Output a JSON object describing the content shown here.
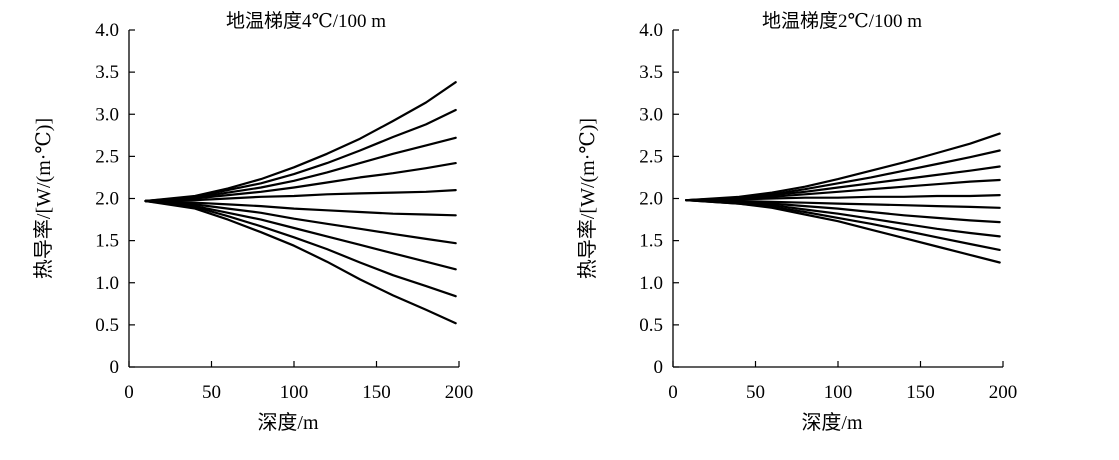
{
  "chart_data": [
    {
      "type": "line",
      "title": "地温梯度4℃/100 m",
      "xlabel": "深度/m",
      "ylabel": "热导率/[W/(m·℃)]",
      "xlim": [
        0,
        200
      ],
      "ylim": [
        0,
        4.0
      ],
      "xticks": [
        "0",
        "50",
        "100",
        "150",
        "200"
      ],
      "yticks": [
        "0",
        "0.5",
        "1.0",
        "1.5",
        "2.0",
        "2.5",
        "3.0",
        "3.5",
        "4.0"
      ],
      "grid": false,
      "legend": "none",
      "line_color": "#000000",
      "x": [
        10,
        40,
        60,
        80,
        100,
        120,
        140,
        160,
        180,
        198
      ],
      "series": [
        {
          "values": [
            1.97,
            2.03,
            2.12,
            2.23,
            2.37,
            2.53,
            2.71,
            2.92,
            3.14,
            3.38
          ]
        },
        {
          "values": [
            1.97,
            2.02,
            2.1,
            2.18,
            2.29,
            2.42,
            2.57,
            2.73,
            2.88,
            3.05
          ]
        },
        {
          "values": [
            1.97,
            2.01,
            2.07,
            2.13,
            2.21,
            2.31,
            2.42,
            2.53,
            2.63,
            2.72
          ]
        },
        {
          "values": [
            1.97,
            2.0,
            2.04,
            2.08,
            2.13,
            2.19,
            2.25,
            2.3,
            2.36,
            2.42
          ]
        },
        {
          "values": [
            1.97,
            1.98,
            2.0,
            2.02,
            2.03,
            2.05,
            2.06,
            2.07,
            2.08,
            2.1
          ]
        },
        {
          "values": [
            1.97,
            1.95,
            1.93,
            1.91,
            1.88,
            1.86,
            1.84,
            1.82,
            1.81,
            1.8
          ]
        },
        {
          "values": [
            1.97,
            1.93,
            1.88,
            1.83,
            1.76,
            1.7,
            1.64,
            1.58,
            1.52,
            1.47
          ]
        },
        {
          "values": [
            1.97,
            1.91,
            1.83,
            1.75,
            1.65,
            1.55,
            1.45,
            1.35,
            1.25,
            1.16
          ]
        },
        {
          "values": [
            1.97,
            1.9,
            1.79,
            1.67,
            1.54,
            1.4,
            1.24,
            1.09,
            0.96,
            0.84
          ]
        },
        {
          "values": [
            1.97,
            1.88,
            1.75,
            1.6,
            1.44,
            1.25,
            1.04,
            0.85,
            0.68,
            0.52
          ]
        }
      ]
    },
    {
      "type": "line",
      "title": "地温梯度2℃/100 m",
      "xlabel": "深度/m",
      "ylabel": "热导率/[W/(m·℃)]",
      "xlim": [
        0,
        200
      ],
      "ylim": [
        0,
        4.0
      ],
      "xticks": [
        "0",
        "50",
        "100",
        "150",
        "200"
      ],
      "yticks": [
        "0",
        "0.5",
        "1.0",
        "1.5",
        "2.0",
        "2.5",
        "3.0",
        "3.5",
        "4.0"
      ],
      "grid": false,
      "legend": "none",
      "line_color": "#000000",
      "x": [
        8,
        40,
        60,
        80,
        100,
        120,
        140,
        160,
        180,
        198
      ],
      "series": [
        {
          "values": [
            1.98,
            2.02,
            2.07,
            2.14,
            2.23,
            2.33,
            2.43,
            2.54,
            2.65,
            2.77
          ]
        },
        {
          "values": [
            1.98,
            2.01,
            2.05,
            2.11,
            2.18,
            2.25,
            2.33,
            2.41,
            2.49,
            2.57
          ]
        },
        {
          "values": [
            1.98,
            2.01,
            2.04,
            2.08,
            2.13,
            2.18,
            2.23,
            2.28,
            2.33,
            2.38
          ]
        },
        {
          "values": [
            1.98,
            2.0,
            2.02,
            2.05,
            2.08,
            2.11,
            2.14,
            2.17,
            2.2,
            2.22
          ]
        },
        {
          "values": [
            1.98,
            1.99,
            2.0,
            2.01,
            2.01,
            2.02,
            2.02,
            2.03,
            2.03,
            2.04
          ]
        },
        {
          "values": [
            1.98,
            1.97,
            1.96,
            1.95,
            1.94,
            1.93,
            1.92,
            1.91,
            1.9,
            1.89
          ]
        },
        {
          "values": [
            1.98,
            1.96,
            1.94,
            1.91,
            1.88,
            1.84,
            1.8,
            1.77,
            1.74,
            1.72
          ]
        },
        {
          "values": [
            1.98,
            1.95,
            1.92,
            1.87,
            1.82,
            1.76,
            1.7,
            1.64,
            1.59,
            1.55
          ]
        },
        {
          "values": [
            1.98,
            1.94,
            1.9,
            1.84,
            1.77,
            1.7,
            1.62,
            1.54,
            1.46,
            1.39
          ]
        },
        {
          "values": [
            1.98,
            1.94,
            1.89,
            1.81,
            1.73,
            1.63,
            1.53,
            1.43,
            1.33,
            1.24
          ]
        }
      ]
    }
  ]
}
